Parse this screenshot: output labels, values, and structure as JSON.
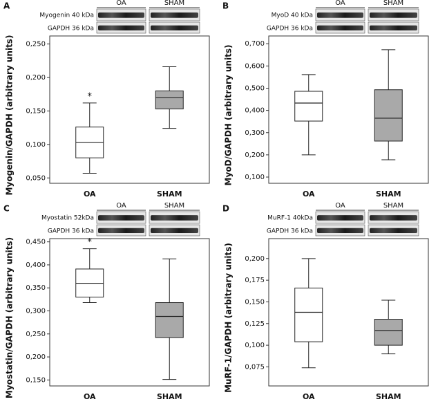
{
  "chart_data": [
    {
      "type": "box",
      "panel": "A",
      "blot_labels": [
        "Myogenin 40 kDa",
        "GAPDH 36 kDa"
      ],
      "groups": [
        "OA",
        "SHAM"
      ],
      "ylabel": "Myogenin/GAPDH (arbitrary units)",
      "categories": [
        "OA",
        "SHAM"
      ],
      "boxes": [
        {
          "min": 0.057,
          "q1": 0.08,
          "median": 0.103,
          "q3": 0.126,
          "max": 0.162,
          "color": "#ffffff"
        },
        {
          "min": 0.124,
          "q1": 0.153,
          "median": 0.17,
          "q3": 0.18,
          "max": 0.216,
          "color": "#a9a9a9"
        }
      ],
      "annotations": [
        "*",
        null
      ],
      "ylim": [
        0.042,
        0.262
      ],
      "yticks": [
        {
          "value": 0.05,
          "label": "0,050"
        },
        {
          "value": 0.1,
          "label": "0,100"
        },
        {
          "value": 0.15,
          "label": "0,150"
        },
        {
          "value": 0.2,
          "label": "0,200"
        },
        {
          "value": 0.25,
          "label": "0,250"
        }
      ]
    },
    {
      "type": "box",
      "panel": "B",
      "blot_labels": [
        "MyoD 40 kDa",
        "GAPDH 36 kDa"
      ],
      "groups": [
        "OA",
        "SHAM"
      ],
      "ylabel": "MyoD/GAPDH (arbitrary units)",
      "categories": [
        "OA",
        "SHAM"
      ],
      "boxes": [
        {
          "min": 0.2,
          "q1": 0.352,
          "median": 0.433,
          "q3": 0.486,
          "max": 0.561,
          "color": "#ffffff"
        },
        {
          "min": 0.178,
          "q1": 0.262,
          "median": 0.365,
          "q3": 0.493,
          "max": 0.673,
          "color": "#a9a9a9"
        }
      ],
      "annotations": [
        null,
        null
      ],
      "ylim": [
        0.072,
        0.735
      ],
      "yticks": [
        {
          "value": 0.1,
          "label": "0,100"
        },
        {
          "value": 0.2,
          "label": "0,200"
        },
        {
          "value": 0.3,
          "label": "0,300"
        },
        {
          "value": 0.4,
          "label": "0,400"
        },
        {
          "value": 0.5,
          "label": "0,500"
        },
        {
          "value": 0.6,
          "label": "0,600"
        },
        {
          "value": 0.7,
          "label": "0,700"
        }
      ]
    },
    {
      "type": "box",
      "panel": "C",
      "blot_labels": [
        "Myostatin 52kDa",
        "GAPDH 36 kDa"
      ],
      "groups": [
        "OA",
        "SHAM"
      ],
      "ylabel": "Myostatin/GAPDH (arbitrary units)",
      "categories": [
        "OA",
        "SHAM"
      ],
      "boxes": [
        {
          "min": 0.318,
          "q1": 0.33,
          "median": 0.36,
          "q3": 0.391,
          "max": 0.435,
          "color": "#ffffff"
        },
        {
          "min": 0.151,
          "q1": 0.242,
          "median": 0.288,
          "q3": 0.318,
          "max": 0.413,
          "color": "#a9a9a9"
        }
      ],
      "annotations": [
        "*",
        null
      ],
      "ylim": [
        0.137,
        0.457
      ],
      "yticks": [
        {
          "value": 0.15,
          "label": "0,150"
        },
        {
          "value": 0.2,
          "label": "0,200"
        },
        {
          "value": 0.25,
          "label": "0,250"
        },
        {
          "value": 0.3,
          "label": "0,300"
        },
        {
          "value": 0.35,
          "label": "0,350"
        },
        {
          "value": 0.4,
          "label": "0,400"
        },
        {
          "value": 0.45,
          "label": "0,450"
        }
      ]
    },
    {
      "type": "box",
      "panel": "D",
      "blot_labels": [
        "MuRF-1 40kDa",
        "GAPDH 36 kDa"
      ],
      "groups": [
        "OA",
        "SHAM"
      ],
      "ylabel": "MuRF-1/GAPDH (arbitrary units)",
      "categories": [
        "OA",
        "SHAM"
      ],
      "boxes": [
        {
          "min": 0.074,
          "q1": 0.104,
          "median": 0.138,
          "q3": 0.166,
          "max": 0.2,
          "color": "#ffffff"
        },
        {
          "min": 0.09,
          "q1": 0.1,
          "median": 0.117,
          "q3": 0.13,
          "max": 0.152,
          "color": "#a9a9a9"
        }
      ],
      "annotations": [
        null,
        null
      ],
      "ylim": [
        0.053,
        0.223
      ],
      "yticks": [
        {
          "value": 0.075,
          "label": "0,075"
        },
        {
          "value": 0.1,
          "label": "0,100"
        },
        {
          "value": 0.125,
          "label": "0,125"
        },
        {
          "value": 0.15,
          "label": "0,150"
        },
        {
          "value": 0.175,
          "label": "0,175"
        },
        {
          "value": 0.2,
          "label": "0,200"
        }
      ]
    }
  ]
}
